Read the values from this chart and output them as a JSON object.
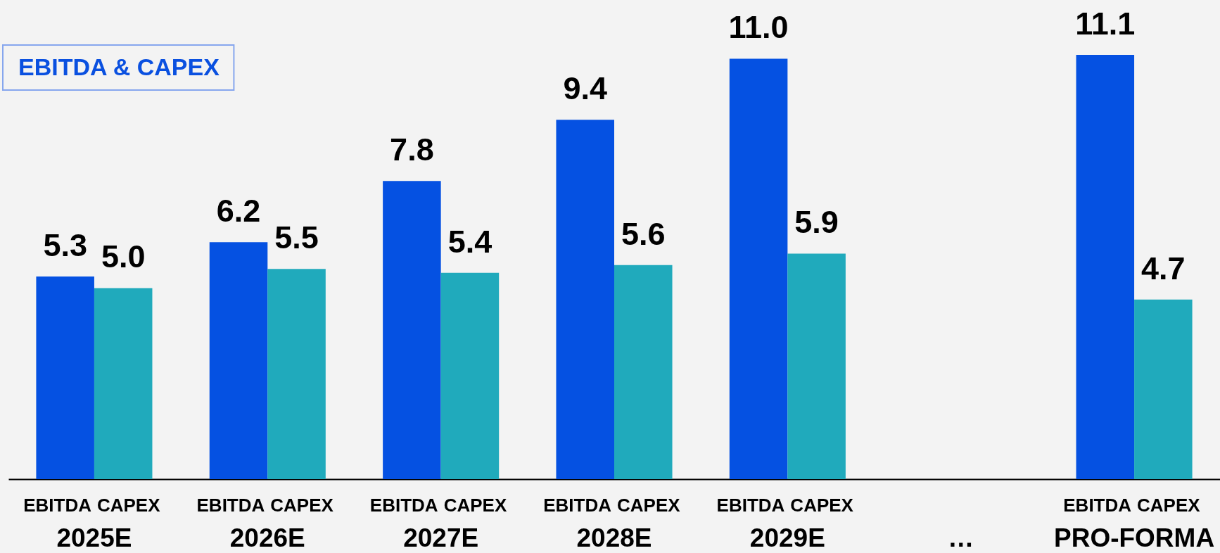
{
  "chart_data": {
    "type": "bar",
    "title": "EBITDA & CAPEX",
    "categories": [
      "2025E",
      "2026E",
      "2027E",
      "2028E",
      "2029E",
      "…",
      "PRO-FORMA"
    ],
    "series": [
      {
        "name": "EBITDA",
        "color": "#0551e2",
        "values": [
          5.3,
          6.2,
          7.8,
          9.4,
          11.0,
          null,
          11.1
        ],
        "value_labels": [
          "5.3",
          "6.2",
          "7.8",
          "9.4",
          "11.0",
          null,
          "11.1"
        ]
      },
      {
        "name": "CAPEX",
        "color": "#20aabc",
        "values": [
          5.0,
          5.5,
          5.4,
          5.6,
          5.9,
          null,
          4.7
        ],
        "value_labels": [
          "5.0",
          "5.5",
          "5.4",
          "5.6",
          "5.9",
          null,
          "4.7"
        ]
      }
    ],
    "legend": false,
    "grid": false,
    "tick_labels": "x"
  }
}
